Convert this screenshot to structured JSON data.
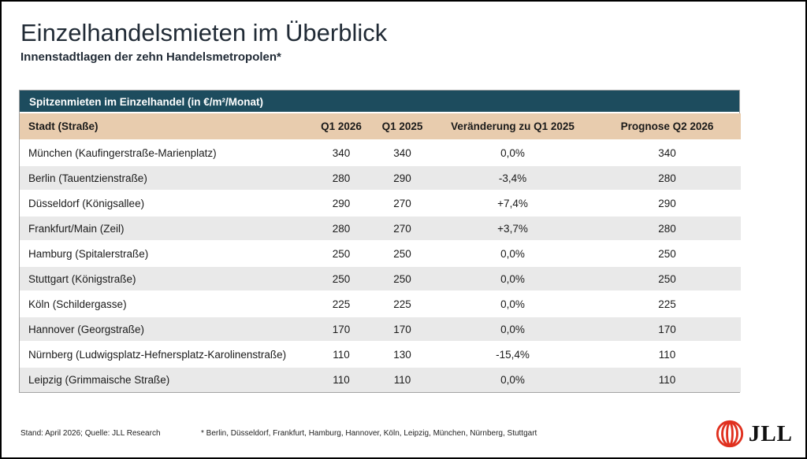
{
  "page": {
    "title": "Einzelhandelsmieten im Überblick",
    "subtitle": "Innenstadtlagen der zehn Handelsmetropolen*"
  },
  "chart_data": {
    "type": "table",
    "title": "Spitzenmieten im Einzelhandel (in €/m²/Monat)",
    "columns": [
      "Stadt (Straße)",
      "Q1 2026",
      "Q1 2025",
      "Veränderung zu Q1 2025",
      "Prognose Q2 2026"
    ],
    "rows": [
      [
        "München (Kaufingerstraße-Marienplatz)",
        "340",
        "340",
        "0,0%",
        "340"
      ],
      [
        "Berlin (Tauentzienstraße)",
        "280",
        "290",
        "-3,4%",
        "280"
      ],
      [
        "Düsseldorf (Königsallee)",
        "290",
        "270",
        "+7,4%",
        "290"
      ],
      [
        "Frankfurt/Main (Zeil)",
        "280",
        "270",
        "+3,7%",
        "280"
      ],
      [
        "Hamburg (Spitalerstraße)",
        "250",
        "250",
        "0,0%",
        "250"
      ],
      [
        "Stuttgart (Königstraße)",
        "250",
        "250",
        "0,0%",
        "250"
      ],
      [
        "Köln (Schildergasse)",
        "225",
        "225",
        "0,0%",
        "225"
      ],
      [
        "Hannover (Georgstraße)",
        "170",
        "170",
        "0,0%",
        "170"
      ],
      [
        "Nürnberg (Ludwigsplatz-Hefnersplatz-Karolinenstraße)",
        "110",
        "130",
        "-15,4%",
        "110"
      ],
      [
        "Leipzig (Grimmaische Straße)",
        "110",
        "110",
        "0,0%",
        "110"
      ]
    ],
    "units": "€/m²/Monat",
    "row_striping": "alternating white and light gray"
  },
  "footer": {
    "source": "Stand: April 2026; Quelle: JLL Research",
    "footnote": "* Berlin, Düsseldorf, Frankfurt, Hamburg, Hannover, Köln, Leipzig, München, Nürnberg, Stuttgart"
  },
  "logo": {
    "text": "JLL"
  },
  "colors": {
    "teal": "#1d4c5e",
    "tan": "#e8ccae",
    "row-alt": "#e9e9e9",
    "logo-red": "#e0301e"
  }
}
